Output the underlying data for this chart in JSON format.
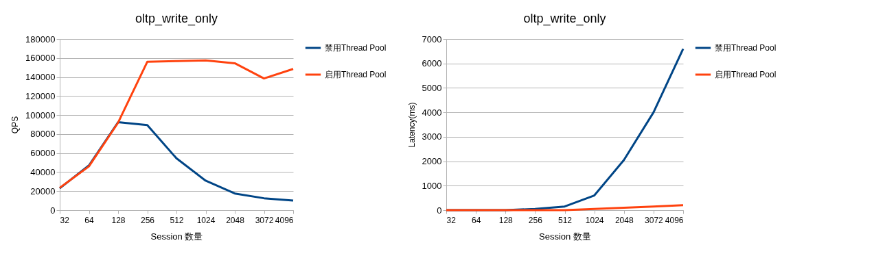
{
  "chart_data": [
    {
      "type": "line",
      "title": "oltp_write_only",
      "xlabel": "Session 数量",
      "ylabel": "QPS",
      "categories": [
        "32",
        "64",
        "128",
        "256",
        "512",
        "1024",
        "2048",
        "3072",
        "4096"
      ],
      "series": [
        {
          "name": "禁用Thread Pool",
          "color": "#004586",
          "values": [
            23000,
            47000,
            92500,
            89500,
            54500,
            31000,
            17500,
            12500,
            10000
          ]
        },
        {
          "name": "启用Thread Pool",
          "color": "#ff420e",
          "values": [
            23500,
            46000,
            92000,
            156000,
            156800,
            157500,
            154500,
            138500,
            148500
          ]
        }
      ],
      "ylim": [
        0,
        180000
      ],
      "yticks": [
        0,
        20000,
        40000,
        60000,
        80000,
        100000,
        120000,
        140000,
        160000,
        180000
      ],
      "grid": "y",
      "legend": "right",
      "line_style": "solid"
    },
    {
      "type": "line",
      "title": "oltp_write_only",
      "xlabel": "Session 数量",
      "ylabel": "Latency(ms)",
      "categories": [
        "32",
        "64",
        "128",
        "256",
        "512",
        "1024",
        "2048",
        "3072",
        "4096"
      ],
      "series": [
        {
          "name": "禁用Thread Pool",
          "color": "#004586",
          "values": [
            0,
            0,
            0,
            50,
            150,
            600,
            2050,
            4000,
            6600
          ]
        },
        {
          "name": "启用Thread Pool",
          "color": "#ff420e",
          "values": [
            0,
            0,
            0,
            0,
            0,
            50,
            100,
            150,
            200
          ]
        }
      ],
      "ylim": [
        0,
        7000
      ],
      "yticks": [
        0,
        1000,
        2000,
        3000,
        4000,
        5000,
        6000,
        7000
      ],
      "grid": "y",
      "legend": "right",
      "line_style": "solid"
    }
  ]
}
